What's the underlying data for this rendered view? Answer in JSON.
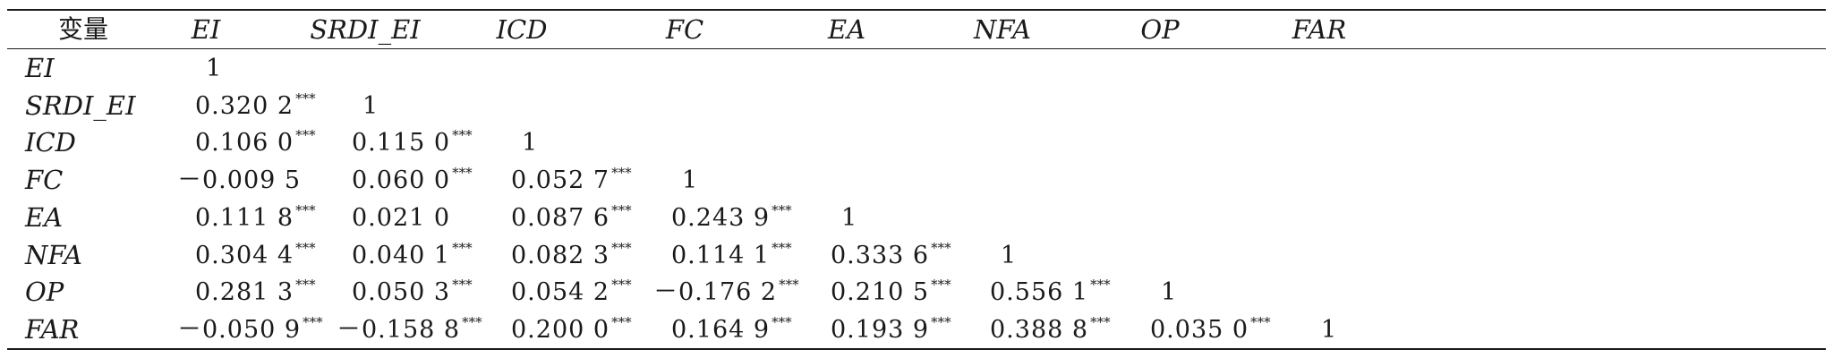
{
  "table": {
    "variable_header": "变量",
    "columns": [
      "EI",
      "SRDI_EI",
      "ICD",
      "FC",
      "EA",
      "NFA",
      "OP",
      "FAR"
    ],
    "rows": [
      {
        "label": "EI",
        "cells": [
          {
            "v": "1",
            "s": ""
          }
        ]
      },
      {
        "label": "SRDI_EI",
        "cells": [
          {
            "v": "0.320 2",
            "s": "***"
          },
          {
            "v": "1",
            "s": ""
          }
        ]
      },
      {
        "label": "ICD",
        "cells": [
          {
            "v": "0.106 0",
            "s": "***"
          },
          {
            "v": "0.115 0",
            "s": "***"
          },
          {
            "v": "1",
            "s": ""
          }
        ]
      },
      {
        "label": "FC",
        "cells": [
          {
            "v": "－0.009 5",
            "s": ""
          },
          {
            "v": "0.060 0",
            "s": "***"
          },
          {
            "v": "0.052 7",
            "s": "***"
          },
          {
            "v": "1",
            "s": ""
          }
        ]
      },
      {
        "label": "EA",
        "cells": [
          {
            "v": "0.111 8",
            "s": "***"
          },
          {
            "v": "0.021 0",
            "s": ""
          },
          {
            "v": "0.087 6",
            "s": "***"
          },
          {
            "v": "0.243 9",
            "s": "***"
          },
          {
            "v": "1",
            "s": ""
          }
        ]
      },
      {
        "label": "NFA",
        "cells": [
          {
            "v": "0.304 4",
            "s": "***"
          },
          {
            "v": "0.040 1",
            "s": "***"
          },
          {
            "v": "0.082 3",
            "s": "***"
          },
          {
            "v": "0.114 1",
            "s": "***"
          },
          {
            "v": "0.333 6",
            "s": "***"
          },
          {
            "v": "1",
            "s": ""
          }
        ]
      },
      {
        "label": "OP",
        "cells": [
          {
            "v": "0.281 3",
            "s": "***"
          },
          {
            "v": "0.050 3",
            "s": "***"
          },
          {
            "v": "0.054 2",
            "s": "***"
          },
          {
            "v": "－0.176 2",
            "s": "***"
          },
          {
            "v": "0.210 5",
            "s": "***"
          },
          {
            "v": "0.556 1",
            "s": "***"
          },
          {
            "v": "1",
            "s": ""
          }
        ]
      },
      {
        "label": "FAR",
        "cells": [
          {
            "v": "－0.050 9",
            "s": "***"
          },
          {
            "v": "－0.158 8",
            "s": "***"
          },
          {
            "v": "0.200 0",
            "s": "***"
          },
          {
            "v": "0.164 9",
            "s": "***"
          },
          {
            "v": "0.193 9",
            "s": "***"
          },
          {
            "v": "0.388 8",
            "s": "***"
          },
          {
            "v": "0.035 0",
            "s": "***"
          },
          {
            "v": "1",
            "s": ""
          }
        ]
      }
    ]
  }
}
